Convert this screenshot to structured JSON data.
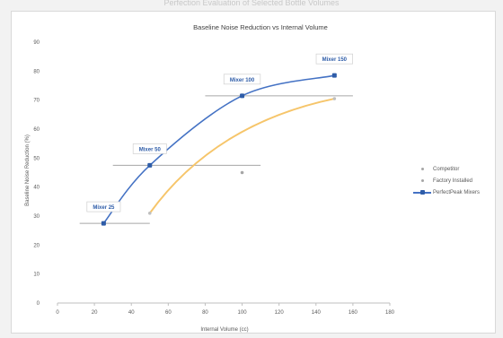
{
  "page": {
    "title": "Perfection Evaluation of Selected Bottle Volumes"
  },
  "chart_data": {
    "type": "scatter",
    "title": "Baseline Noise Reduction vs Internal Volume",
    "xlabel": "Internal Volume (cc)",
    "ylabel": "Baseline Noise Reduction (%)",
    "xlim": [
      0,
      180
    ],
    "ylim": [
      0,
      90
    ],
    "x_ticks": [
      "0",
      "20",
      "40",
      "60",
      "80",
      "100",
      "120",
      "140",
      "160",
      "180"
    ],
    "y_ticks": [
      "0",
      "10",
      "20",
      "30",
      "40",
      "50",
      "60",
      "70",
      "80",
      "90"
    ],
    "grid": false,
    "legend": "right",
    "series": [
      {
        "name": "Competitor",
        "kind": "marker",
        "color": "#a6a6a6",
        "points": [
          {
            "x": 100,
            "y": 45
          }
        ]
      },
      {
        "name": "Factory Installed",
        "kind": "trend",
        "color": "#f6c56a",
        "points": [
          {
            "x": 50,
            "y": 31
          },
          {
            "x": 150,
            "y": 70.5
          }
        ]
      },
      {
        "name": "PerfectPeak Mixers",
        "kind": "line",
        "color": "#4472c4",
        "points": [
          {
            "x": 25,
            "y": 27.5,
            "label": "Mixer 25"
          },
          {
            "x": 50,
            "y": 47.5,
            "label": "Mixer 50"
          },
          {
            "x": 100,
            "y": 71.5,
            "label": "Mixer 100"
          },
          {
            "x": 150,
            "y": 78.5,
            "label": "Mixer 150"
          }
        ]
      }
    ],
    "reference_lines": [
      {
        "x_from": 12,
        "x_to": 50,
        "y": 27.5
      },
      {
        "x_from": 30,
        "x_to": 110,
        "y": 47.5
      },
      {
        "x_from": 80,
        "x_to": 160,
        "y": 71.5
      }
    ]
  }
}
